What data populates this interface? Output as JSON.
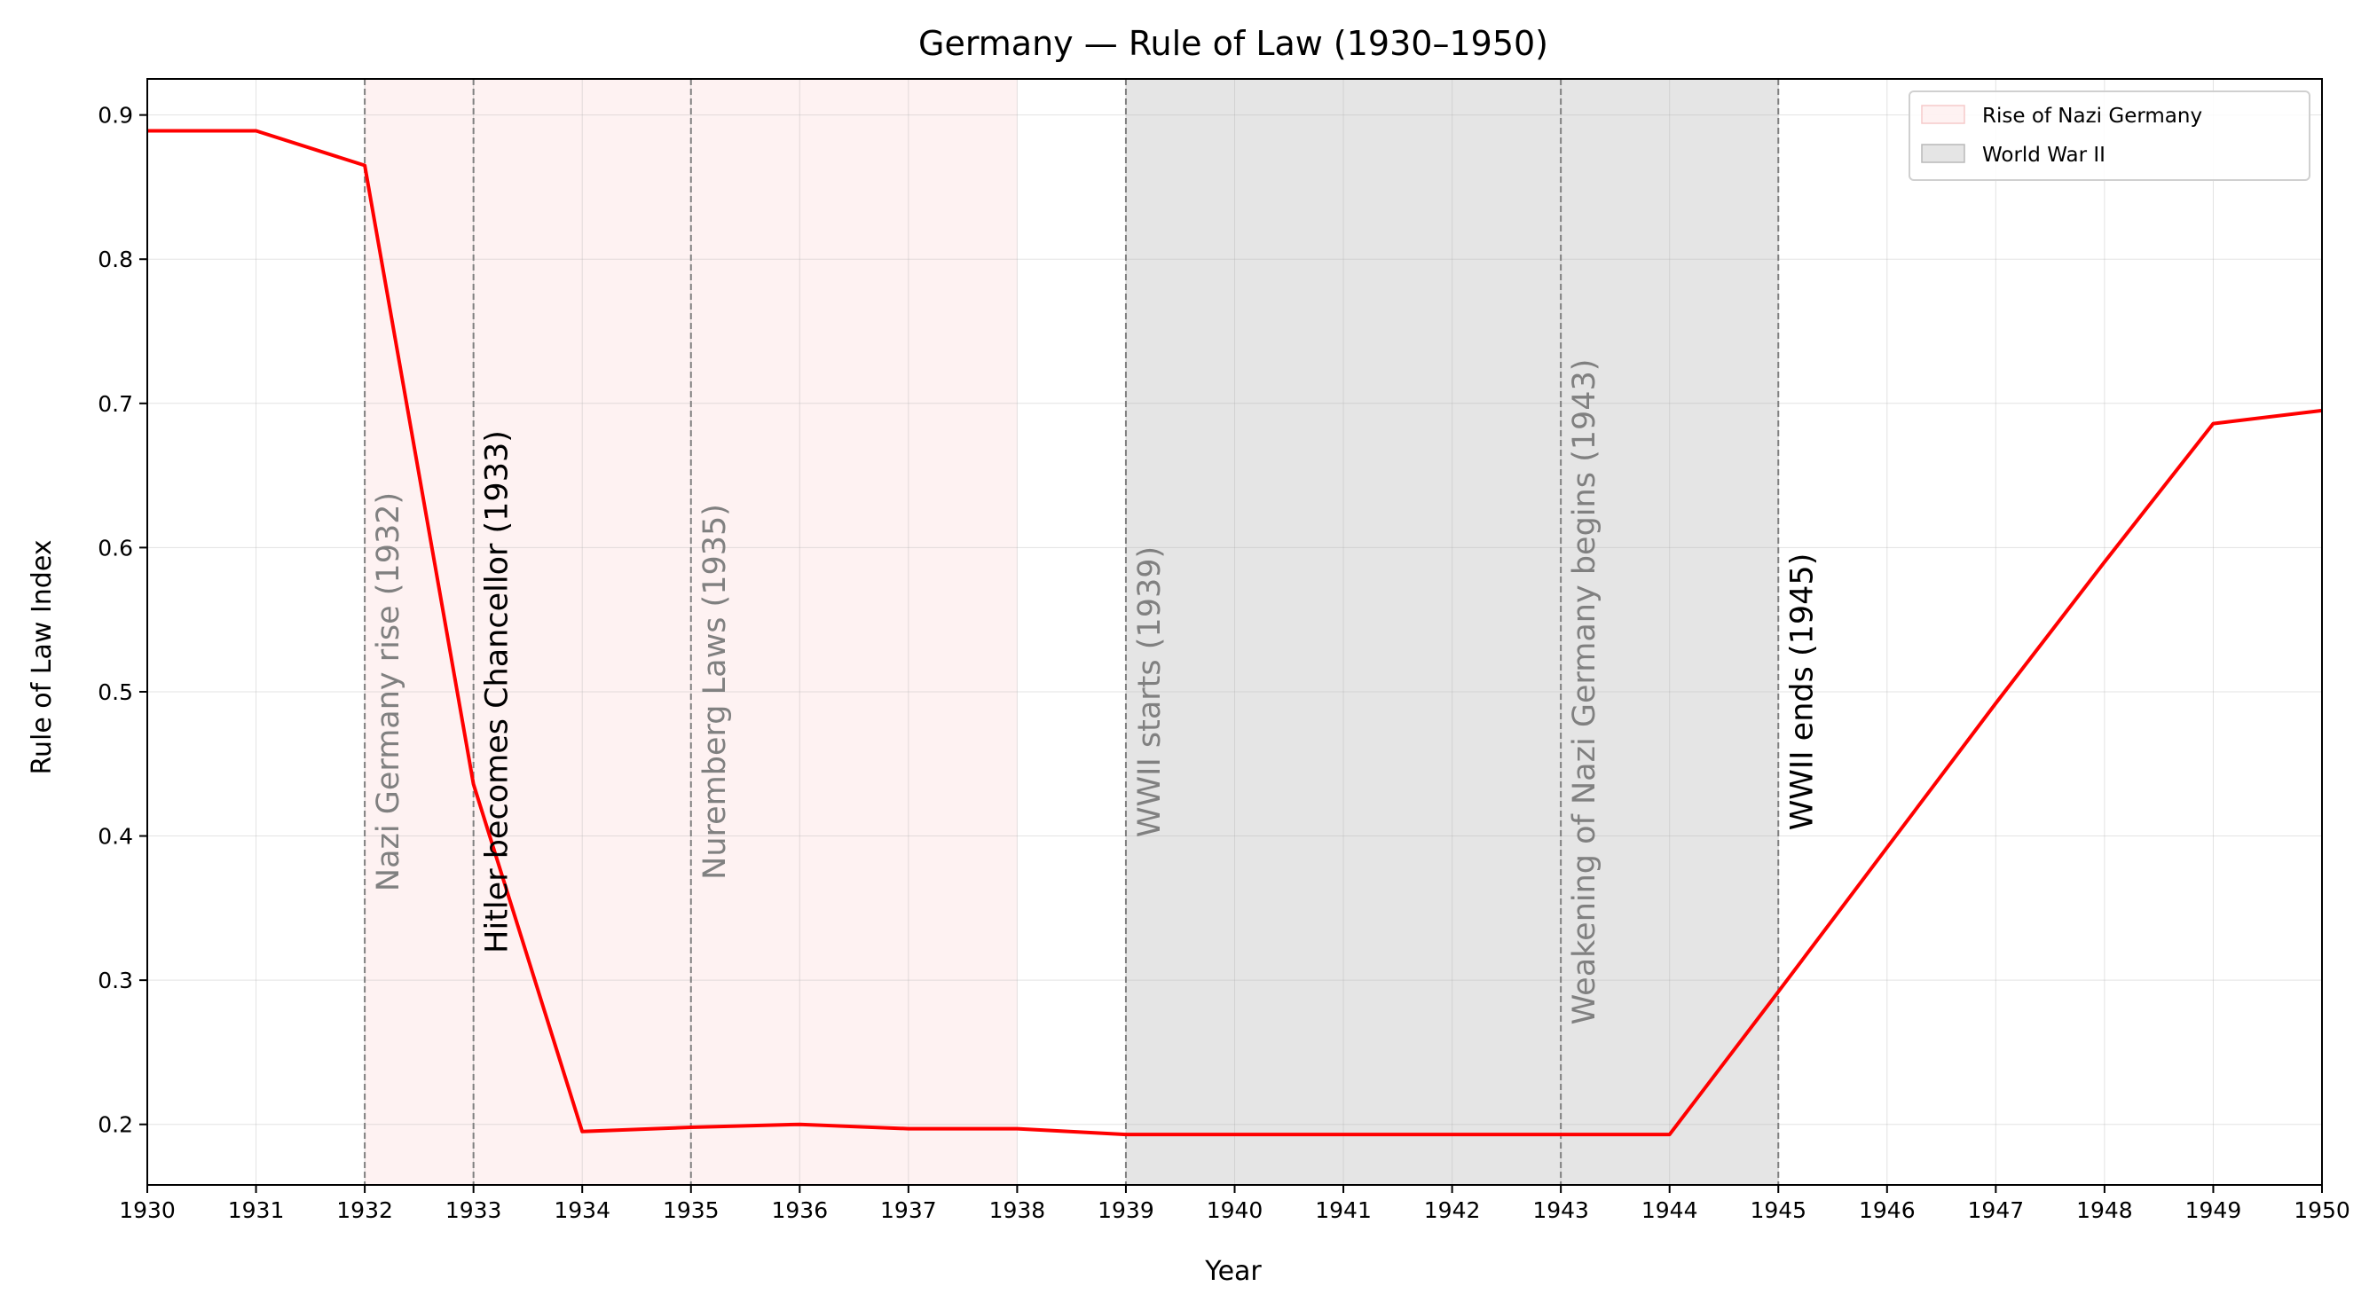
{
  "chart_data": {
    "type": "line",
    "title": "Germany — Rule of Law (1930–1950)",
    "xlabel": "Year",
    "ylabel": "Rule of Law Index",
    "xlim": [
      1930,
      1950
    ],
    "ylim": [
      0.158,
      0.925
    ],
    "x_ticks": [
      1930,
      1931,
      1932,
      1933,
      1934,
      1935,
      1936,
      1937,
      1938,
      1939,
      1940,
      1941,
      1942,
      1943,
      1944,
      1945,
      1946,
      1947,
      1948,
      1949,
      1950
    ],
    "y_ticks": [
      0.2,
      0.3,
      0.4,
      0.5,
      0.6,
      0.7,
      0.8,
      0.9
    ],
    "y_tick_labels": [
      "0.2",
      "0.3",
      "0.4",
      "0.5",
      "0.6",
      "0.7",
      "0.8",
      "0.9"
    ],
    "grid": true,
    "legend_position": "top-right",
    "series": [
      {
        "color": "#ff0000",
        "x": [
          1930,
          1931,
          1932,
          1933,
          1934,
          1935,
          1936,
          1937,
          1938,
          1939,
          1940,
          1941,
          1942,
          1943,
          1944,
          1945,
          1946,
          1947,
          1948,
          1949,
          1950
        ],
        "values": [
          0.889,
          0.889,
          0.865,
          0.436,
          0.195,
          0.198,
          0.2,
          0.197,
          0.197,
          0.193,
          0.193,
          0.193,
          0.193,
          0.193,
          0.193,
          0.292,
          0.392,
          0.492,
          0.59,
          0.686,
          0.695
        ]
      }
    ],
    "spans": [
      {
        "label": "Rise of Nazi Germany",
        "start": 1932,
        "end": 1938,
        "color": "#fdecec"
      },
      {
        "label": "World War II",
        "start": 1939,
        "end": 1945,
        "color": "#d3d3d3"
      }
    ],
    "events": [
      {
        "year": 1932,
        "label": "Nazi Germany rise (1932)",
        "color": "#808080"
      },
      {
        "year": 1933,
        "label": "Hitler becomes Chancellor (1933)",
        "color": "#000000"
      },
      {
        "year": 1935,
        "label": "Nuremberg Laws (1935)",
        "color": "#808080"
      },
      {
        "year": 1939,
        "label": "WWII starts (1939)",
        "color": "#808080"
      },
      {
        "year": 1943,
        "label": "Weakening of Nazi Germany begins (1943)",
        "color": "#808080"
      },
      {
        "year": 1945,
        "label": "WWII ends (1945)",
        "color": "#000000"
      }
    ]
  }
}
